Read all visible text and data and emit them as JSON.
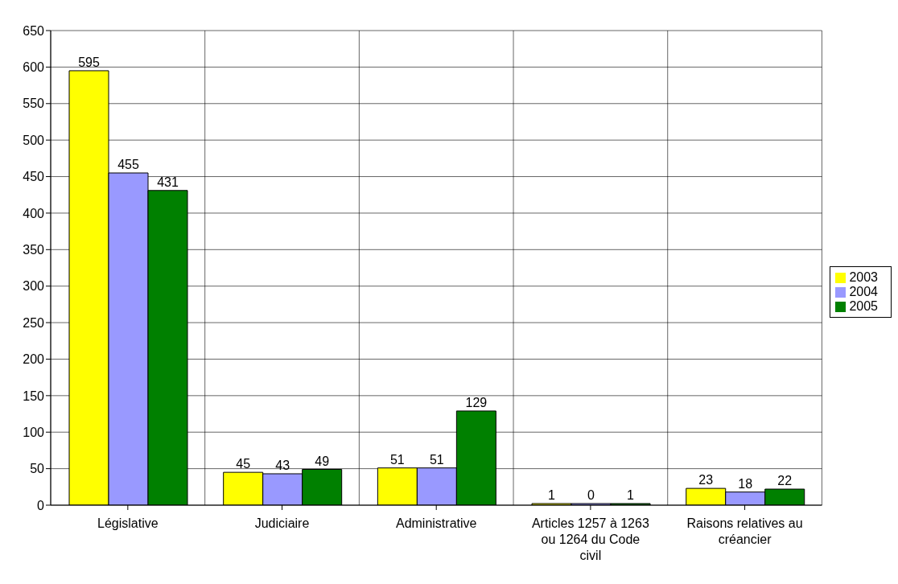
{
  "chart_data": {
    "type": "bar",
    "categories": [
      "Législative",
      "Judiciaire",
      "Administrative",
      "Articles 1257 à 1263 ou 1264 du Code civil",
      "Raisons relatives au créancier"
    ],
    "series": [
      {
        "name": "2003",
        "color": "#ffff00",
        "values": [
          595,
          45,
          51,
          1,
          23
        ]
      },
      {
        "name": "2004",
        "color": "#9999ff",
        "values": [
          455,
          43,
          51,
          0,
          18
        ]
      },
      {
        "name": "2005",
        "color": "#008000",
        "values": [
          431,
          49,
          129,
          1,
          22
        ]
      }
    ],
    "ylim": [
      0,
      650
    ],
    "yticks": [
      0,
      50,
      100,
      150,
      200,
      250,
      300,
      350,
      400,
      450,
      500,
      550,
      600,
      650
    ],
    "grid": true,
    "legend": "right",
    "data_labels": true
  }
}
